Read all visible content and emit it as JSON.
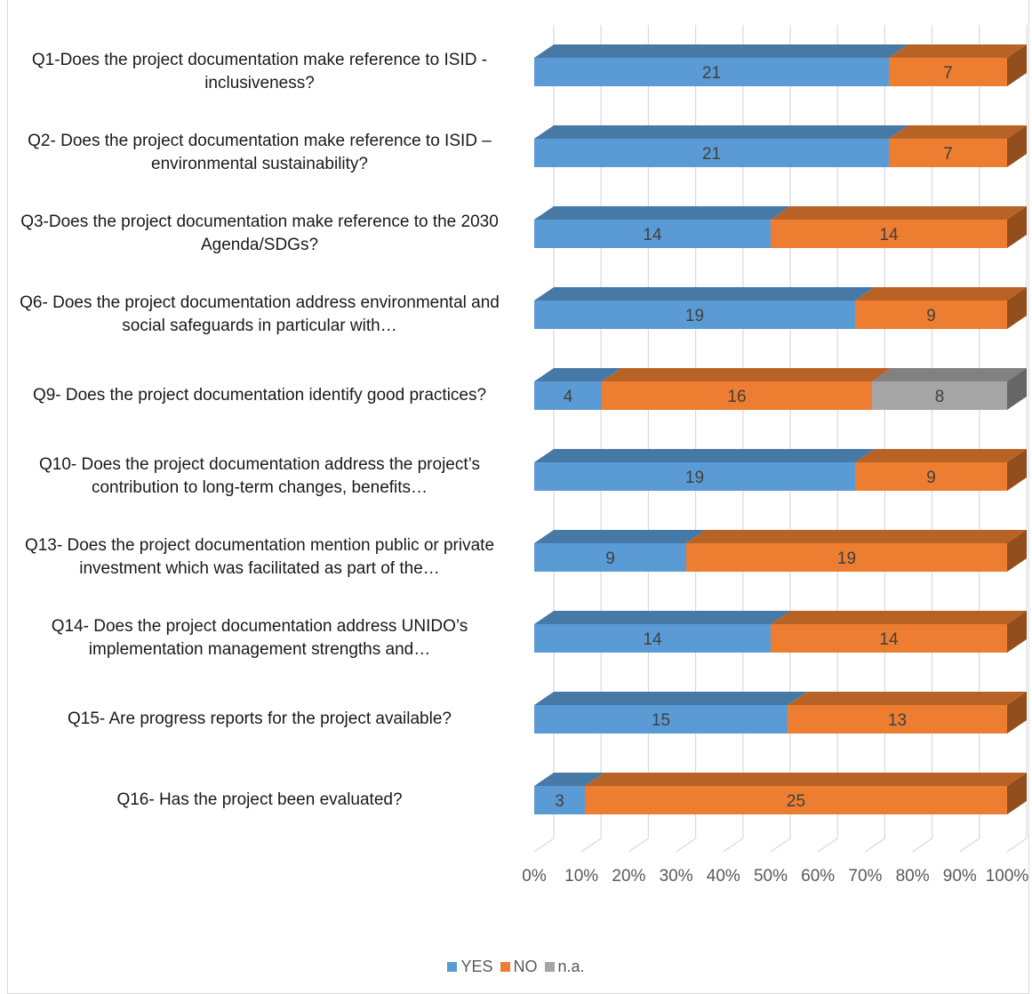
{
  "chart_data": {
    "type": "bar",
    "stacked": "percent",
    "orientation": "horizontal",
    "categories": [
      "Q1-Does the project documentation make reference to ISID - inclusiveness?",
      "Q2- Does the project documentation make reference to ISID – environmental sustainability?",
      "Q3-Does the project documentation make reference to the 2030 Agenda/SDGs?",
      "Q6- Does the project documentation address environmental and social safeguards in particular with…",
      "Q9- Does the project documentation identify good practices?",
      "Q10- Does the project documentation address the project’s contribution to long-term changes, benefits…",
      "Q13- Does the project documentation mention public or private investment which was facilitated as part of the…",
      "Q14- Does the project documentation address UNIDO’s implementation management strengths and…",
      "Q15- Are progress reports for the project available?",
      "Q16- Has the project been evaluated?"
    ],
    "series": [
      {
        "name": "YES",
        "color": "#5b9bd5",
        "values": [
          21,
          21,
          14,
          19,
          4,
          19,
          9,
          14,
          15,
          3
        ]
      },
      {
        "name": "NO",
        "color": "#ed7d31",
        "values": [
          7,
          7,
          14,
          9,
          16,
          9,
          19,
          14,
          13,
          25
        ]
      },
      {
        "name": "n.a.",
        "color": "#a5a5a5",
        "values": [
          0,
          0,
          0,
          0,
          8,
          0,
          0,
          0,
          0,
          0
        ]
      }
    ],
    "x_ticks": [
      "0%",
      "10%",
      "20%",
      "30%",
      "40%",
      "50%",
      "60%",
      "70%",
      "80%",
      "90%",
      "100%"
    ],
    "xlim": [
      0,
      100
    ],
    "grid": true,
    "legend": "bottom"
  }
}
